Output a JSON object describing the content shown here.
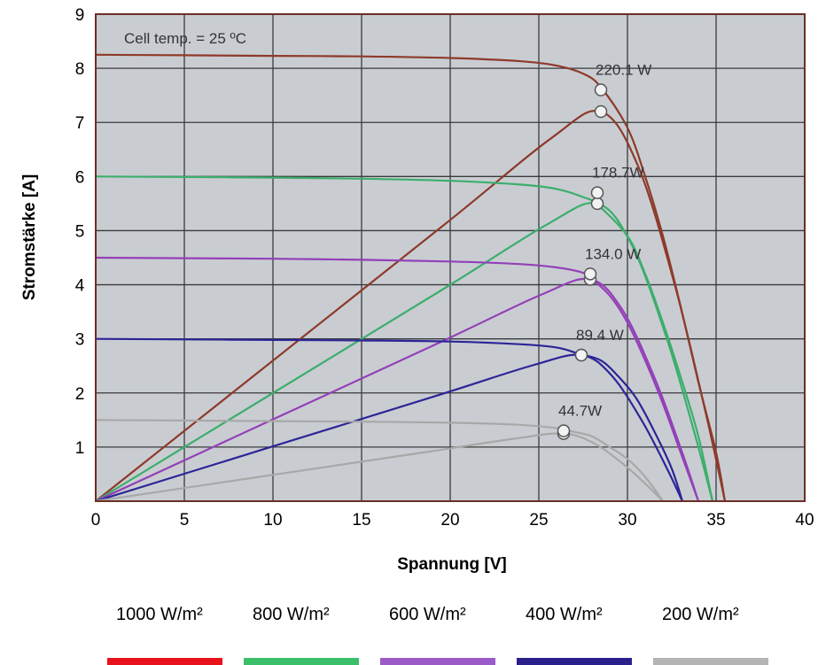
{
  "chart_data": {
    "type": "line",
    "title": "",
    "xlabel": "Spannung [V]",
    "ylabel": "Stromstärke [A]",
    "xlim": [
      0,
      40
    ],
    "ylim": [
      0,
      9
    ],
    "xticks": [
      "0",
      "5",
      "10",
      "15",
      "20",
      "25",
      "30",
      "35",
      "40"
    ],
    "yticks": [
      "1",
      "2",
      "3",
      "4",
      "5",
      "6",
      "7",
      "8",
      "9"
    ],
    "grid": true,
    "background": "#c9cdd2",
    "annotation": "Cell temp. = 25 ºC",
    "legend_position": "bottom",
    "series": [
      {
        "name": "1000 W/m²",
        "legend_color": "#e8121c",
        "line_color": "#8e3a2a",
        "iv": [
          [
            0,
            8.25
          ],
          [
            5,
            8.24
          ],
          [
            10,
            8.23
          ],
          [
            15,
            8.22
          ],
          [
            20,
            8.19
          ],
          [
            24,
            8.13
          ],
          [
            26,
            8.05
          ],
          [
            27.5,
            7.9
          ],
          [
            28.5,
            7.65
          ],
          [
            30,
            6.9
          ],
          [
            31,
            6.0
          ],
          [
            32,
            4.9
          ],
          [
            33,
            3.6
          ],
          [
            34,
            2.2
          ],
          [
            35,
            0.9
          ],
          [
            35.5,
            0
          ]
        ],
        "mpp_label": "220.1 W",
        "mpp": [
          28.5,
          7.6
        ],
        "mpp2": [
          28.5,
          7.2
        ]
      },
      {
        "name": "800 W/m²",
        "legend_color": "#3cbf6a",
        "line_color": "#3cae6c",
        "iv": [
          [
            0,
            6.0
          ],
          [
            5,
            5.99
          ],
          [
            10,
            5.98
          ],
          [
            15,
            5.96
          ],
          [
            20,
            5.92
          ],
          [
            24,
            5.85
          ],
          [
            26,
            5.77
          ],
          [
            27.5,
            5.62
          ],
          [
            28.3,
            5.48
          ],
          [
            30,
            4.9
          ],
          [
            31,
            4.2
          ],
          [
            32,
            3.3
          ],
          [
            33,
            2.3
          ],
          [
            34,
            1.2
          ],
          [
            34.8,
            0
          ]
        ],
        "mpp_label": "178.7W",
        "mpp": [
          28.3,
          5.7
        ],
        "mpp2": [
          28.3,
          5.5
        ]
      },
      {
        "name": "600 W/m²",
        "legend_color": "#9b5bc9",
        "line_color": "#9440b8",
        "iv": [
          [
            0,
            4.5
          ],
          [
            5,
            4.49
          ],
          [
            10,
            4.48
          ],
          [
            15,
            4.46
          ],
          [
            20,
            4.43
          ],
          [
            24,
            4.38
          ],
          [
            26,
            4.32
          ],
          [
            27.5,
            4.22
          ],
          [
            28,
            4.1
          ],
          [
            29,
            3.8
          ],
          [
            30,
            3.3
          ],
          [
            31,
            2.6
          ],
          [
            32,
            1.8
          ],
          [
            33,
            0.9
          ],
          [
            34,
            0
          ]
        ],
        "mpp_label": "134.0 W",
        "mpp": [
          27.9,
          4.2
        ],
        "mpp2": [
          27.9,
          4.1
        ]
      },
      {
        "name": "400 W/m²",
        "legend_color": "#2b1f8c",
        "line_color": "#2c2597",
        "iv": [
          [
            0,
            3.0
          ],
          [
            5,
            2.99
          ],
          [
            10,
            2.98
          ],
          [
            15,
            2.97
          ],
          [
            20,
            2.95
          ],
          [
            24,
            2.9
          ],
          [
            26,
            2.84
          ],
          [
            27.3,
            2.72
          ],
          [
            28.5,
            2.6
          ],
          [
            29.5,
            2.3
          ],
          [
            30.5,
            1.9
          ],
          [
            31.5,
            1.3
          ],
          [
            32.5,
            0.6
          ],
          [
            33.1,
            0
          ]
        ],
        "mpp_label": "89.4 W",
        "mpp": [
          27.4,
          2.7
        ],
        "mpp2": [
          27.4,
          2.7
        ]
      },
      {
        "name": "200 W/m²",
        "legend_color": "#b4b4b4",
        "line_color": "#a8a8a8",
        "iv": [
          [
            0,
            1.5
          ],
          [
            5,
            1.49
          ],
          [
            10,
            1.48
          ],
          [
            15,
            1.47
          ],
          [
            20,
            1.45
          ],
          [
            24,
            1.41
          ],
          [
            26,
            1.35
          ],
          [
            27,
            1.28
          ],
          [
            28,
            1.2
          ],
          [
            29,
            1.0
          ],
          [
            30,
            0.78
          ],
          [
            31,
            0.45
          ],
          [
            32,
            0
          ]
        ],
        "mpp_label": "44.7W",
        "mpp": [
          26.4,
          1.3
        ],
        "mpp2": [
          26.4,
          1.25
        ]
      }
    ]
  }
}
